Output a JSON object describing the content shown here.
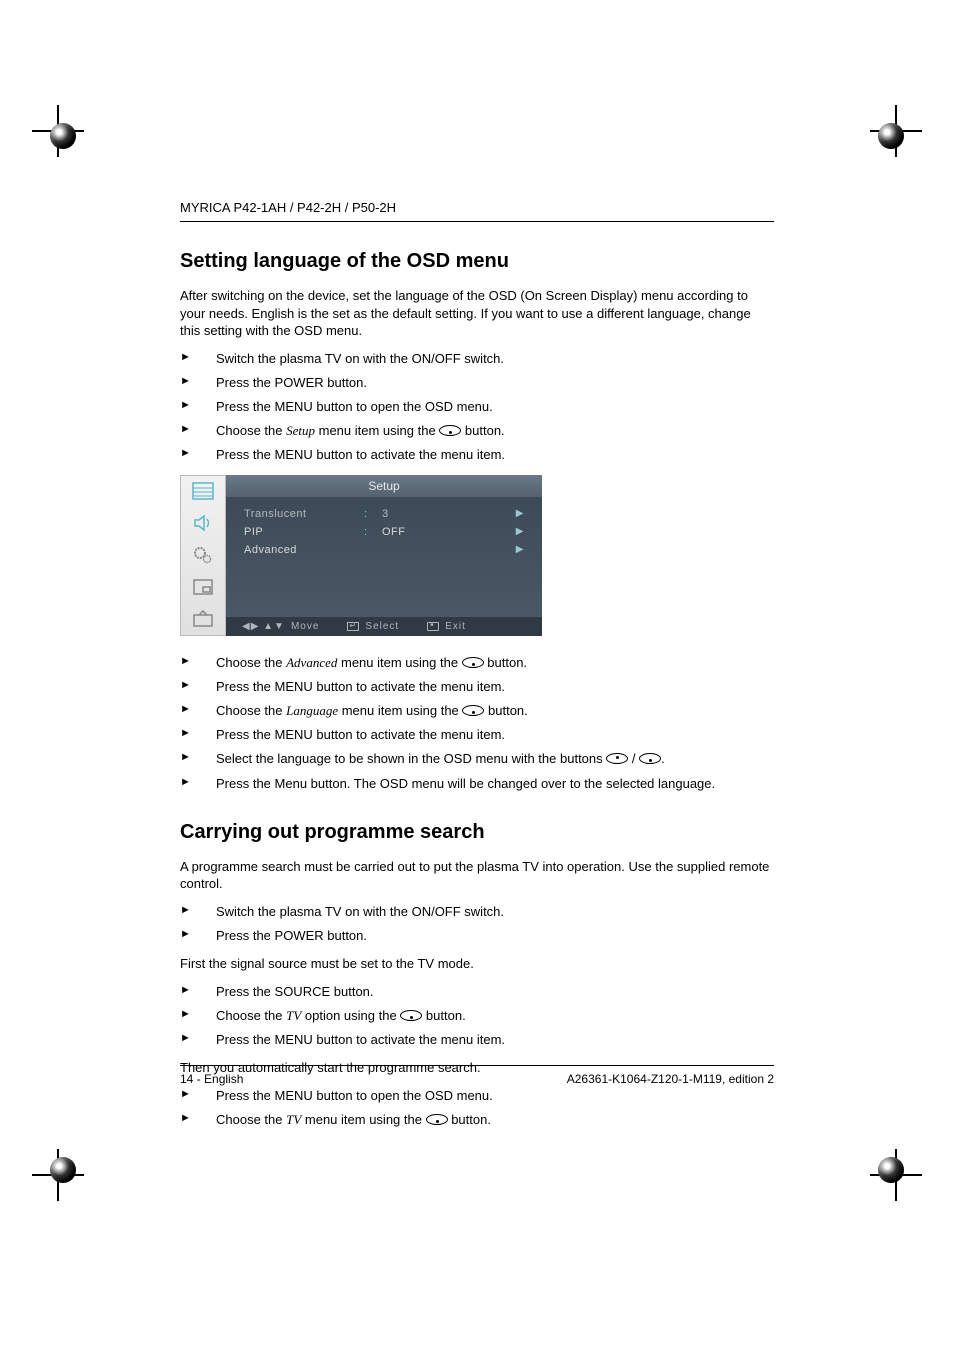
{
  "header": "MYRICA P42-1AH / P42-2H / P50-2H",
  "section1": {
    "title": "Setting language of the OSD menu",
    "intro": "After switching on the device, set the language of the OSD (On Screen Display) menu according to your needs. English is the set as the default setting. If you want to use a different language, change this setting with the OSD menu.",
    "steps1": [
      {
        "t": "Switch the plasma TV on with the ON/OFF switch."
      },
      {
        "t": "Press the POWER button."
      },
      {
        "t": "Press the MENU button to open the OSD menu."
      },
      {
        "pre": "Choose the ",
        "em": "Setup",
        "post": " menu item using the ",
        "btn": "down",
        "tail": " button."
      },
      {
        "t": "Press the MENU button to activate the menu item."
      }
    ],
    "steps2": [
      {
        "pre": "Choose the ",
        "em": "Advanced",
        "post": " menu item using the ",
        "btn": "down",
        "tail": " button."
      },
      {
        "t": "Press the MENU button to activate the menu item."
      },
      {
        "pre": "Choose the ",
        "em": "Language",
        "post": " menu item using the ",
        "btn": "down",
        "tail": " button."
      },
      {
        "t": "Press the MENU button to activate the menu item."
      },
      {
        "pre": "Select the language to be shown in the OSD menu with the buttons ",
        "btn": "up",
        "mid": " / ",
        "btn2": "down",
        "tail": "."
      },
      {
        "t": "Press the Menu button. The OSD menu will be changed over to the selected language."
      }
    ]
  },
  "osd": {
    "title": "Setup",
    "rows": [
      {
        "label": "Translucent",
        "colon": ":",
        "val": "3",
        "arrow": true,
        "selected": true
      },
      {
        "label": "PIP",
        "colon": ":",
        "val": "OFF",
        "arrow": true
      },
      {
        "label": "Advanced",
        "colon": "",
        "val": "",
        "arrow": true
      }
    ],
    "nav": {
      "move": "Move",
      "select": "Select",
      "exit": "Exit"
    },
    "colors": {
      "bg": "#3d4a57",
      "text": "#d8d8d8",
      "accent": "#7fb8c8",
      "sidebar": "#e8e8e8",
      "navbar": "#303a45"
    }
  },
  "section2": {
    "title": "Carrying out programme search",
    "intro": "A programme search must be carried out to put the plasma TV into operation. Use the supplied remote control.",
    "steps1": [
      {
        "t": "Switch the plasma TV on with the ON/OFF switch."
      },
      {
        "t": "Press the POWER button."
      }
    ],
    "note1": "First the signal source must be set to the TV mode.",
    "steps2": [
      {
        "t": "Press the SOURCE button."
      },
      {
        "pre": "Choose the ",
        "em": "TV",
        "post": " option using the ",
        "btn": "down",
        "tail": " button."
      },
      {
        "t": "Press the MENU button to activate the menu item."
      }
    ],
    "note2": "Then you automatically start the programme search.",
    "steps3": [
      {
        "t": "Press the MENU button to open the OSD menu."
      },
      {
        "pre": "Choose the ",
        "em": "TV",
        "post": " menu item using the ",
        "btn": "down",
        "tail": " button."
      }
    ]
  },
  "footer": {
    "left": "14 - English",
    "right": "A26361-K1064-Z120-1-M119, edition 2"
  }
}
